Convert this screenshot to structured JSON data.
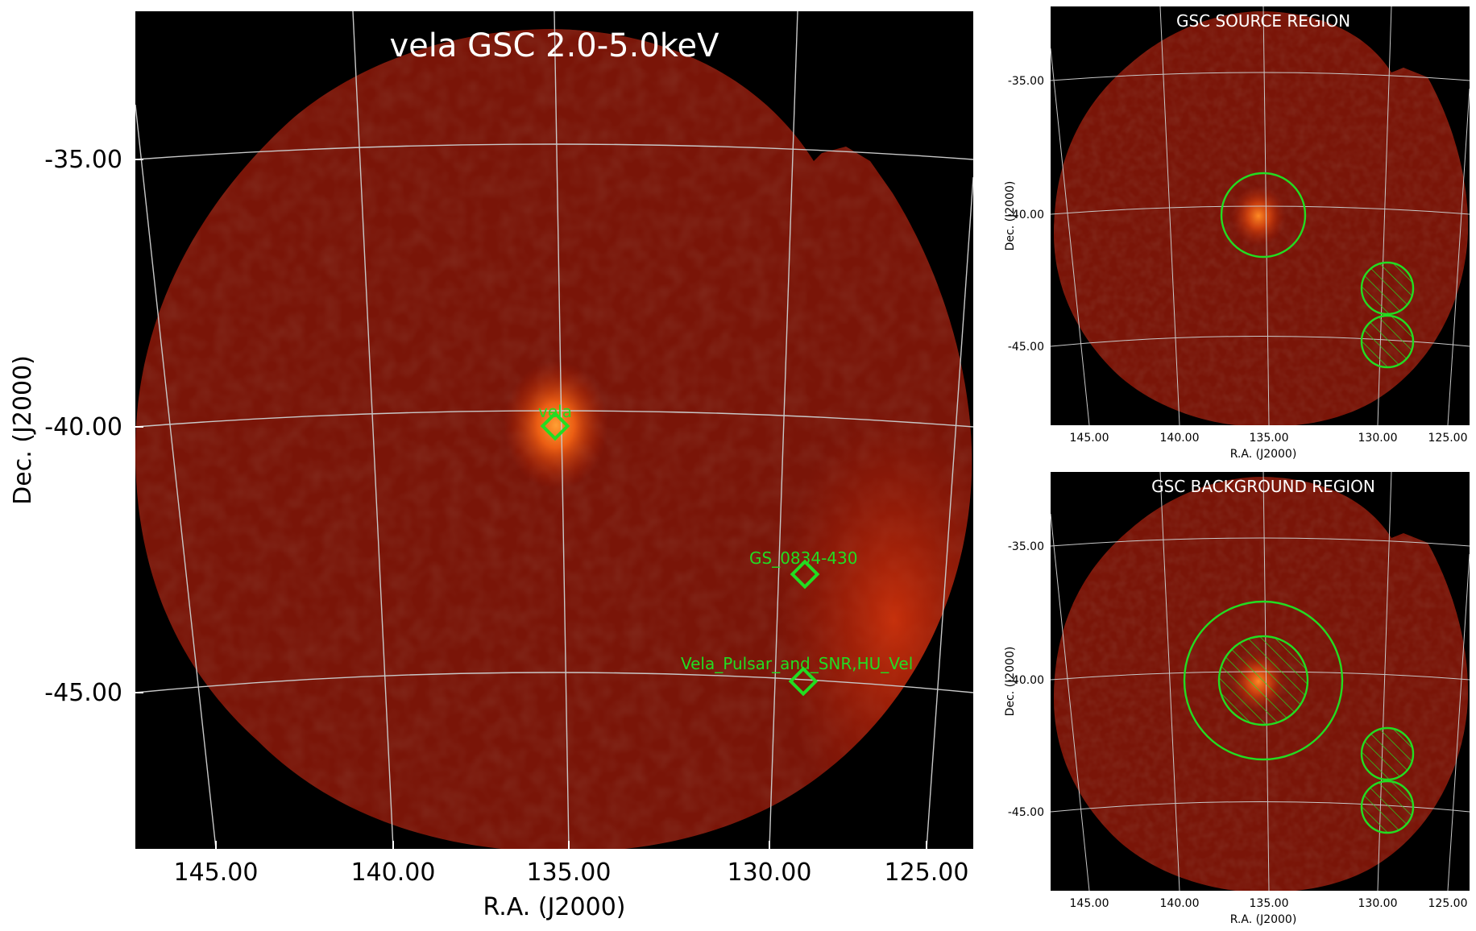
{
  "colors": {
    "sky_bg": "#000000",
    "field_dark": "#5a0d05",
    "field_mid": "#8c1a0a",
    "source_hot": "#ff7a1a",
    "grid": "#c8c8c8",
    "region": "#22dd22",
    "label_white": "#ffffff",
    "axis_text": "#000000"
  },
  "main": {
    "title": "vela GSC 2.0-5.0keV",
    "xlabel": "R.A. (J2000)",
    "ylabel": "Dec. (J2000)",
    "ra_ticks": [
      "145.00",
      "140.00",
      "135.00",
      "130.00",
      "125.00"
    ],
    "dec_ticks": [
      "-35.00",
      "-40.00",
      "-45.00"
    ],
    "sources": [
      {
        "name": "vela",
        "ra": 135.4,
        "dec": -40.0
      },
      {
        "name": "GS_0834-430",
        "ra": 128.3,
        "dec": -42.8
      },
      {
        "name": "Vela_Pulsar_and_SNR,HU_Vel",
        "ra": 128.3,
        "dec": -44.8
      }
    ]
  },
  "source_panel": {
    "title": "GSC SOURCE REGION",
    "xlabel": "R.A. (J2000)",
    "ylabel": "Dec. (J2000)",
    "ra_ticks": [
      "145.00",
      "140.00",
      "135.00",
      "130.00",
      "125.00"
    ],
    "dec_ticks": [
      "-35.00",
      "-40.00",
      "-45.00"
    ]
  },
  "background_panel": {
    "title": "GSC BACKGROUND REGION",
    "xlabel": "R.A. (J2000)",
    "ylabel": "Dec. (J2000)",
    "ra_ticks": [
      "145.00",
      "140.00",
      "135.00",
      "130.00",
      "125.00"
    ],
    "dec_ticks": [
      "-35.00",
      "-40.00",
      "-45.00"
    ]
  }
}
